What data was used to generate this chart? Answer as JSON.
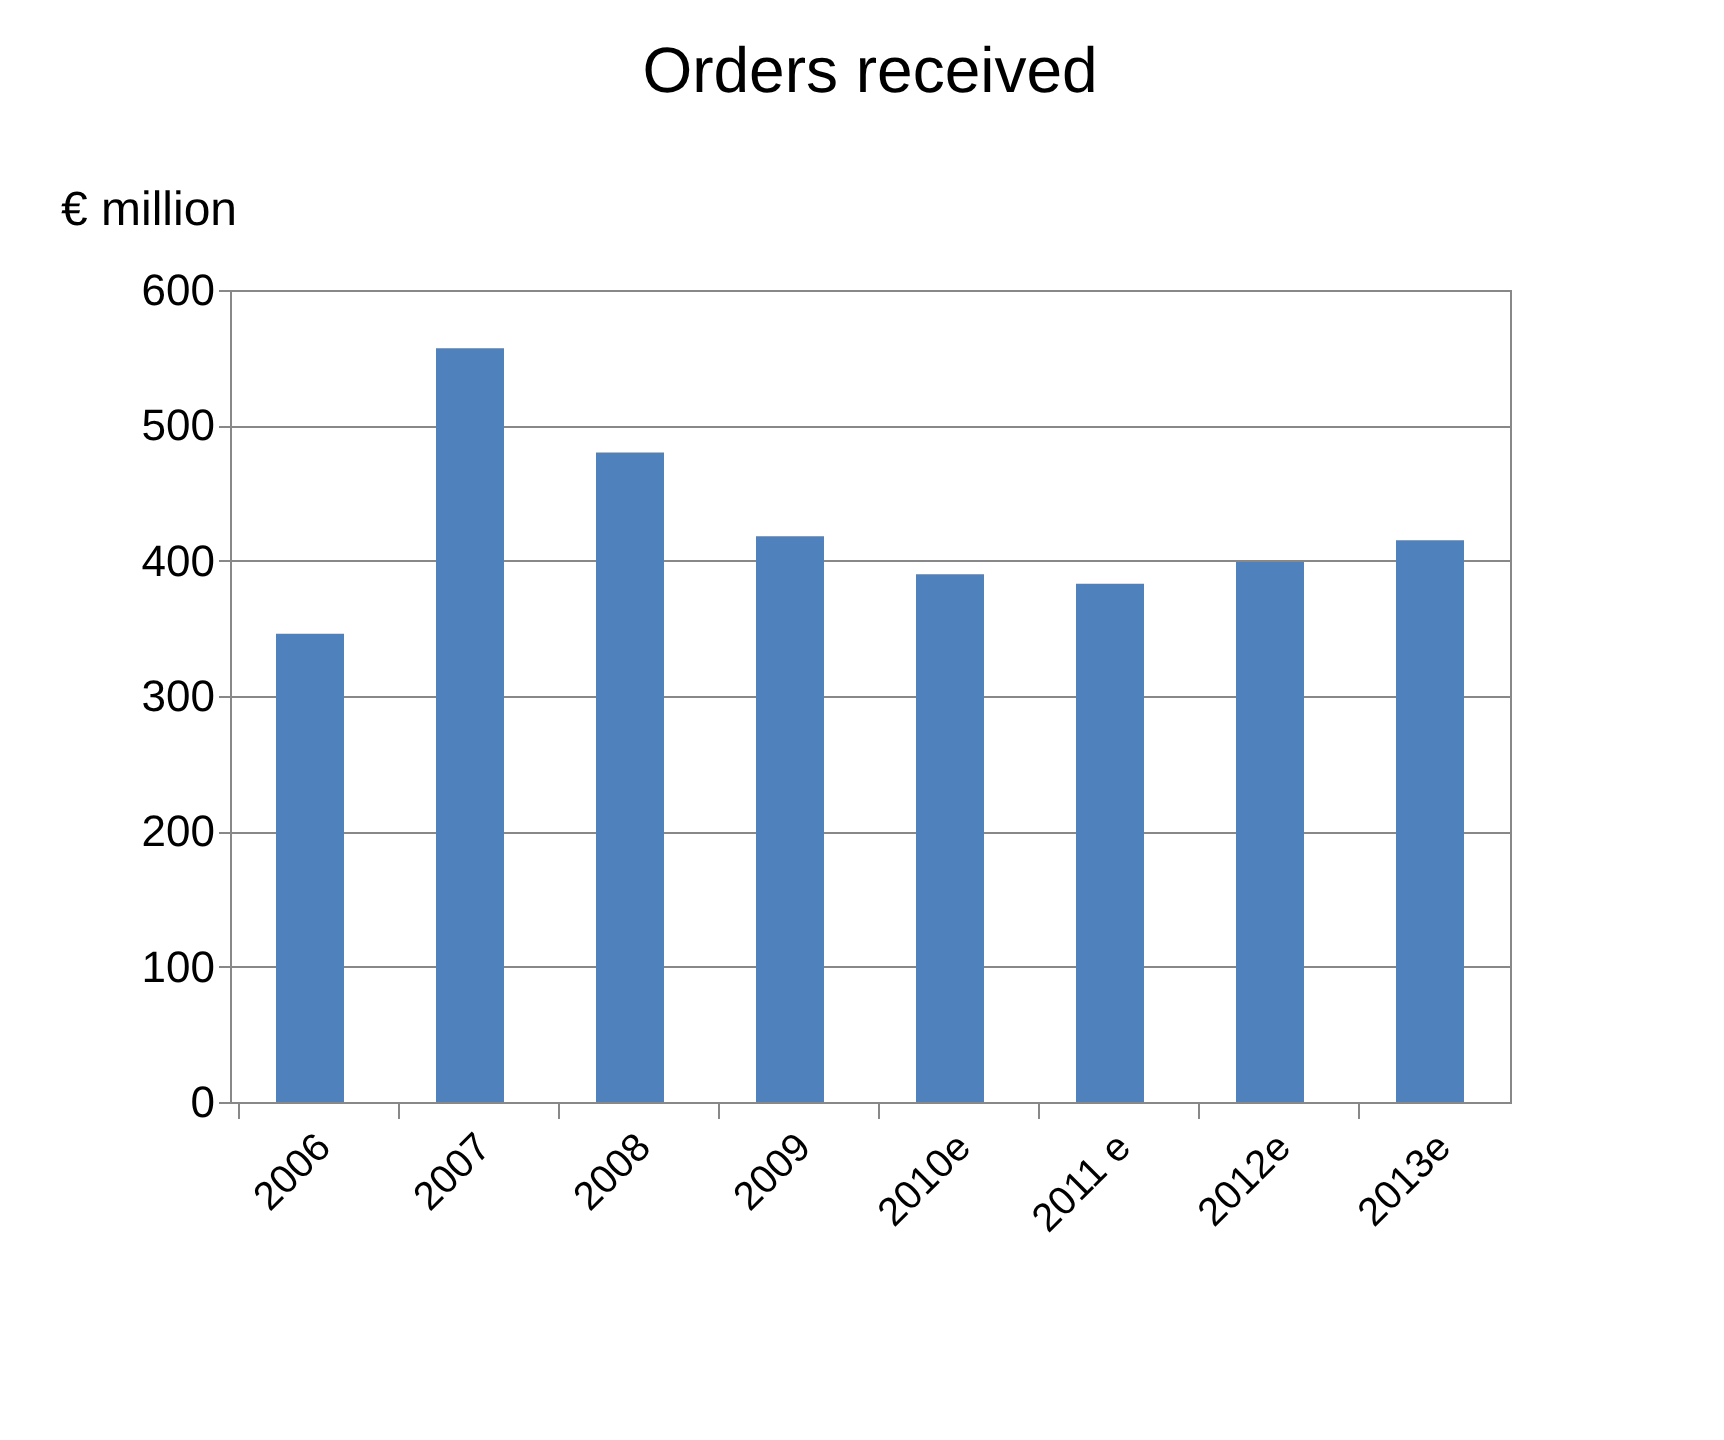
{
  "chart_data": {
    "type": "bar",
    "title": "Orders received",
    "ylabel": "€ million",
    "categories": [
      "2006",
      "2007",
      "2008",
      "2009",
      "2010e",
      "2011 e",
      "2012e",
      "2013e"
    ],
    "values": [
      346,
      557,
      480,
      418,
      390,
      383,
      399,
      415
    ],
    "color": "#4f81bd",
    "ylim": [
      0,
      600
    ],
    "yticks": [
      0,
      100,
      200,
      300,
      400,
      500,
      600
    ],
    "grid": "y"
  }
}
